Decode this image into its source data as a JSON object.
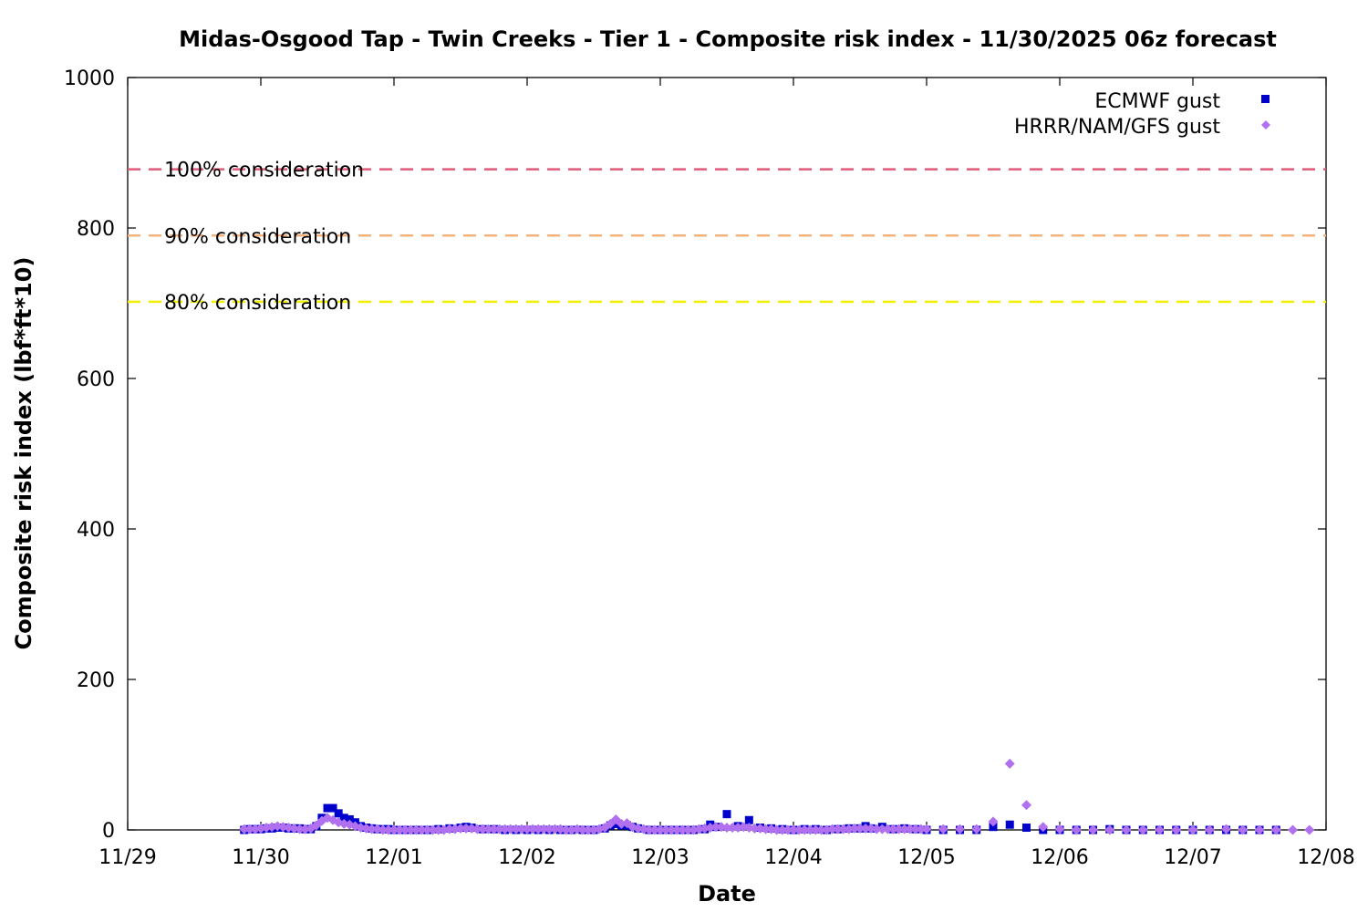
{
  "chart_data": {
    "type": "scatter",
    "title": "Midas-Osgood Tap - Twin Creeks - Tier 1 - Composite risk index - 11/30/2025 06z forecast",
    "xlabel": "Date",
    "ylabel": "Composite risk index (lbf*ft*10)",
    "x_ticks": [
      "11/29",
      "11/30",
      "12/01",
      "12/02",
      "12/03",
      "12/04",
      "12/05",
      "12/06",
      "12/07",
      "12/08"
    ],
    "xlim": [
      "2025-11-29T00:00",
      "2025-12-08T00:00"
    ],
    "ylim": [
      0,
      1000
    ],
    "y_ticks": [
      "0",
      "200",
      "400",
      "600",
      "800",
      "1000"
    ],
    "y_tick_values": [
      0,
      200,
      400,
      600,
      800,
      1000
    ],
    "grid": false,
    "legend_position": "top-right",
    "reference_lines": [
      {
        "label": "100% consideration",
        "value": 878,
        "color": "#e05a7a"
      },
      {
        "label": "90% consideration",
        "value": 790,
        "color": "#f5b27a"
      },
      {
        "label": "80% consideration",
        "value": 702,
        "color": "#f0f000"
      }
    ],
    "series": [
      {
        "name": "ECMWF gust",
        "marker": "square",
        "color": "#0000cc",
        "points": [
          [
            "2025-11-29T21:00",
            0
          ],
          [
            "2025-11-29T22:00",
            1
          ],
          [
            "2025-11-29T23:00",
            1
          ],
          [
            "2025-11-30T00:00",
            1
          ],
          [
            "2025-11-30T01:00",
            2
          ],
          [
            "2025-11-30T02:00",
            2
          ],
          [
            "2025-11-30T03:00",
            3
          ],
          [
            "2025-11-30T04:00",
            3
          ],
          [
            "2025-11-30T05:00",
            2
          ],
          [
            "2025-11-30T06:00",
            2
          ],
          [
            "2025-11-30T07:00",
            2
          ],
          [
            "2025-11-30T08:00",
            1
          ],
          [
            "2025-11-30T09:00",
            1
          ],
          [
            "2025-11-30T10:00",
            5
          ],
          [
            "2025-11-30T11:00",
            16
          ],
          [
            "2025-11-30T12:00",
            29
          ],
          [
            "2025-11-30T13:00",
            29
          ],
          [
            "2025-11-30T14:00",
            22
          ],
          [
            "2025-11-30T15:00",
            16
          ],
          [
            "2025-11-30T16:00",
            14
          ],
          [
            "2025-11-30T17:00",
            10
          ],
          [
            "2025-11-30T18:00",
            5
          ],
          [
            "2025-11-30T19:00",
            3
          ],
          [
            "2025-11-30T20:00",
            2
          ],
          [
            "2025-11-30T21:00",
            1
          ],
          [
            "2025-11-30T22:00",
            1
          ],
          [
            "2025-11-30T23:00",
            1
          ],
          [
            "2025-12-01T00:00",
            0
          ],
          [
            "2025-12-01T02:00",
            0
          ],
          [
            "2025-12-01T04:00",
            0
          ],
          [
            "2025-12-01T06:00",
            0
          ],
          [
            "2025-12-01T08:00",
            1
          ],
          [
            "2025-12-01T10:00",
            2
          ],
          [
            "2025-12-01T12:00",
            3
          ],
          [
            "2025-12-01T13:00",
            4
          ],
          [
            "2025-12-01T14:00",
            3
          ],
          [
            "2025-12-01T16:00",
            1
          ],
          [
            "2025-12-01T18:00",
            1
          ],
          [
            "2025-12-01T20:00",
            0
          ],
          [
            "2025-12-01T22:00",
            0
          ],
          [
            "2025-12-02T00:00",
            0
          ],
          [
            "2025-12-02T02:00",
            0
          ],
          [
            "2025-12-02T04:00",
            0
          ],
          [
            "2025-12-02T06:00",
            0
          ],
          [
            "2025-12-02T08:00",
            0
          ],
          [
            "2025-12-02T10:00",
            0
          ],
          [
            "2025-12-02T12:00",
            0
          ],
          [
            "2025-12-02T14:00",
            2
          ],
          [
            "2025-12-02T15:00",
            6
          ],
          [
            "2025-12-02T16:00",
            8
          ],
          [
            "2025-12-02T17:00",
            6
          ],
          [
            "2025-12-02T18:00",
            6
          ],
          [
            "2025-12-02T19:00",
            4
          ],
          [
            "2025-12-02T20:00",
            2
          ],
          [
            "2025-12-02T22:00",
            0
          ],
          [
            "2025-12-03T00:00",
            0
          ],
          [
            "2025-12-03T02:00",
            0
          ],
          [
            "2025-12-03T04:00",
            0
          ],
          [
            "2025-12-03T06:00",
            0
          ],
          [
            "2025-12-03T08:00",
            1
          ],
          [
            "2025-12-03T09:00",
            7
          ],
          [
            "2025-12-03T10:00",
            4
          ],
          [
            "2025-12-03T12:00",
            21
          ],
          [
            "2025-12-03T14:00",
            5
          ],
          [
            "2025-12-03T16:00",
            13
          ],
          [
            "2025-12-03T18:00",
            3
          ],
          [
            "2025-12-03T20:00",
            2
          ],
          [
            "2025-12-03T22:00",
            1
          ],
          [
            "2025-12-04T00:00",
            0
          ],
          [
            "2025-12-04T02:00",
            1
          ],
          [
            "2025-12-04T04:00",
            1
          ],
          [
            "2025-12-04T06:00",
            0
          ],
          [
            "2025-12-04T08:00",
            1
          ],
          [
            "2025-12-04T10:00",
            2
          ],
          [
            "2025-12-04T12:00",
            2
          ],
          [
            "2025-12-04T13:00",
            5
          ],
          [
            "2025-12-04T14:00",
            2
          ],
          [
            "2025-12-04T16:00",
            4
          ],
          [
            "2025-12-04T18:00",
            1
          ],
          [
            "2025-12-04T20:00",
            2
          ],
          [
            "2025-12-04T22:00",
            1
          ],
          [
            "2025-12-05T00:00",
            0
          ],
          [
            "2025-12-05T03:00",
            0
          ],
          [
            "2025-12-05T06:00",
            0
          ],
          [
            "2025-12-05T09:00",
            0
          ],
          [
            "2025-12-05T12:00",
            4
          ],
          [
            "2025-12-05T15:00",
            7
          ],
          [
            "2025-12-05T18:00",
            3
          ],
          [
            "2025-12-05T21:00",
            0
          ],
          [
            "2025-12-06T00:00",
            0
          ],
          [
            "2025-12-06T03:00",
            0
          ],
          [
            "2025-12-06T06:00",
            0
          ],
          [
            "2025-12-06T09:00",
            1
          ],
          [
            "2025-12-06T12:00",
            0
          ],
          [
            "2025-12-06T15:00",
            0
          ],
          [
            "2025-12-06T18:00",
            0
          ],
          [
            "2025-12-06T21:00",
            0
          ],
          [
            "2025-12-07T00:00",
            0
          ],
          [
            "2025-12-07T03:00",
            0
          ],
          [
            "2025-12-07T06:00",
            0
          ],
          [
            "2025-12-07T09:00",
            0
          ],
          [
            "2025-12-07T12:00",
            0
          ],
          [
            "2025-12-07T15:00",
            0
          ]
        ]
      },
      {
        "name": "HRRR/NAM/GFS gust",
        "marker": "diamond",
        "color": "#b070f0",
        "points": [
          [
            "2025-11-29T21:00",
            1
          ],
          [
            "2025-11-29T22:00",
            1
          ],
          [
            "2025-11-29T23:00",
            1
          ],
          [
            "2025-11-30T00:00",
            2
          ],
          [
            "2025-11-30T01:00",
            3
          ],
          [
            "2025-11-30T02:00",
            4
          ],
          [
            "2025-11-30T03:00",
            5
          ],
          [
            "2025-11-30T04:00",
            4
          ],
          [
            "2025-11-30T05:00",
            3
          ],
          [
            "2025-11-30T06:00",
            2
          ],
          [
            "2025-11-30T07:00",
            1
          ],
          [
            "2025-11-30T08:00",
            1
          ],
          [
            "2025-11-30T09:00",
            2
          ],
          [
            "2025-11-30T10:00",
            6
          ],
          [
            "2025-11-30T11:00",
            12
          ],
          [
            "2025-11-30T12:00",
            16
          ],
          [
            "2025-11-30T13:00",
            13
          ],
          [
            "2025-11-30T14:00",
            10
          ],
          [
            "2025-11-30T15:00",
            8
          ],
          [
            "2025-11-30T16:00",
            7
          ],
          [
            "2025-11-30T17:00",
            5
          ],
          [
            "2025-11-30T18:00",
            3
          ],
          [
            "2025-11-30T19:00",
            2
          ],
          [
            "2025-11-30T20:00",
            1
          ],
          [
            "2025-11-30T21:00",
            1
          ],
          [
            "2025-11-30T22:00",
            0
          ],
          [
            "2025-11-30T23:00",
            0
          ],
          [
            "2025-12-01T00:00",
            0
          ],
          [
            "2025-12-01T01:00",
            0
          ],
          [
            "2025-12-01T02:00",
            0
          ],
          [
            "2025-12-01T03:00",
            0
          ],
          [
            "2025-12-01T04:00",
            0
          ],
          [
            "2025-12-01T05:00",
            0
          ],
          [
            "2025-12-01T06:00",
            0
          ],
          [
            "2025-12-01T07:00",
            0
          ],
          [
            "2025-12-01T08:00",
            0
          ],
          [
            "2025-12-01T09:00",
            0
          ],
          [
            "2025-12-01T10:00",
            1
          ],
          [
            "2025-12-01T11:00",
            1
          ],
          [
            "2025-12-01T12:00",
            2
          ],
          [
            "2025-12-01T13:00",
            2
          ],
          [
            "2025-12-01T14:00",
            2
          ],
          [
            "2025-12-01T15:00",
            1
          ],
          [
            "2025-12-01T16:00",
            1
          ],
          [
            "2025-12-01T17:00",
            1
          ],
          [
            "2025-12-01T18:00",
            1
          ],
          [
            "2025-12-01T19:00",
            1
          ],
          [
            "2025-12-01T20:00",
            1
          ],
          [
            "2025-12-01T21:00",
            1
          ],
          [
            "2025-12-01T22:00",
            1
          ],
          [
            "2025-12-01T23:00",
            1
          ],
          [
            "2025-12-02T00:00",
            1
          ],
          [
            "2025-12-02T01:00",
            1
          ],
          [
            "2025-12-02T02:00",
            1
          ],
          [
            "2025-12-02T03:00",
            1
          ],
          [
            "2025-12-02T04:00",
            1
          ],
          [
            "2025-12-02T05:00",
            1
          ],
          [
            "2025-12-02T06:00",
            1
          ],
          [
            "2025-12-02T07:00",
            0
          ],
          [
            "2025-12-02T08:00",
            0
          ],
          [
            "2025-12-02T09:00",
            1
          ],
          [
            "2025-12-02T10:00",
            0
          ],
          [
            "2025-12-02T11:00",
            0
          ],
          [
            "2025-12-02T12:00",
            0
          ],
          [
            "2025-12-02T13:00",
            1
          ],
          [
            "2025-12-02T14:00",
            3
          ],
          [
            "2025-12-02T15:00",
            8
          ],
          [
            "2025-12-02T16:00",
            14
          ],
          [
            "2025-12-02T17:00",
            8
          ],
          [
            "2025-12-02T18:00",
            9
          ],
          [
            "2025-12-02T19:00",
            4
          ],
          [
            "2025-12-02T20:00",
            2
          ],
          [
            "2025-12-02T21:00",
            1
          ],
          [
            "2025-12-02T22:00",
            0
          ],
          [
            "2025-12-02T23:00",
            0
          ],
          [
            "2025-12-03T00:00",
            0
          ],
          [
            "2025-12-03T01:00",
            0
          ],
          [
            "2025-12-03T02:00",
            0
          ],
          [
            "2025-12-03T03:00",
            0
          ],
          [
            "2025-12-03T04:00",
            0
          ],
          [
            "2025-12-03T05:00",
            0
          ],
          [
            "2025-12-03T06:00",
            0
          ],
          [
            "2025-12-03T07:00",
            1
          ],
          [
            "2025-12-03T08:00",
            2
          ],
          [
            "2025-12-03T09:00",
            3
          ],
          [
            "2025-12-03T10:00",
            4
          ],
          [
            "2025-12-03T11:00",
            4
          ],
          [
            "2025-12-03T12:00",
            3
          ],
          [
            "2025-12-03T13:00",
            3
          ],
          [
            "2025-12-03T14:00",
            3
          ],
          [
            "2025-12-03T15:00",
            4
          ],
          [
            "2025-12-03T16:00",
            3
          ],
          [
            "2025-12-03T17:00",
            2
          ],
          [
            "2025-12-03T18:00",
            2
          ],
          [
            "2025-12-03T19:00",
            1
          ],
          [
            "2025-12-03T20:00",
            1
          ],
          [
            "2025-12-03T21:00",
            0
          ],
          [
            "2025-12-03T22:00",
            0
          ],
          [
            "2025-12-03T23:00",
            0
          ],
          [
            "2025-12-04T00:00",
            0
          ],
          [
            "2025-12-04T01:00",
            0
          ],
          [
            "2025-12-04T02:00",
            0
          ],
          [
            "2025-12-04T03:00",
            0
          ],
          [
            "2025-12-04T04:00",
            0
          ],
          [
            "2025-12-04T05:00",
            0
          ],
          [
            "2025-12-04T06:00",
            0
          ],
          [
            "2025-12-04T07:00",
            1
          ],
          [
            "2025-12-04T08:00",
            1
          ],
          [
            "2025-12-04T09:00",
            1
          ],
          [
            "2025-12-04T10:00",
            1
          ],
          [
            "2025-12-04T11:00",
            2
          ],
          [
            "2025-12-04T12:00",
            2
          ],
          [
            "2025-12-04T13:00",
            2
          ],
          [
            "2025-12-04T14:00",
            2
          ],
          [
            "2025-12-04T15:00",
            1
          ],
          [
            "2025-12-04T16:00",
            1
          ],
          [
            "2025-12-04T17:00",
            1
          ],
          [
            "2025-12-04T18:00",
            1
          ],
          [
            "2025-12-04T19:00",
            1
          ],
          [
            "2025-12-04T20:00",
            1
          ],
          [
            "2025-12-04T21:00",
            1
          ],
          [
            "2025-12-04T22:00",
            1
          ],
          [
            "2025-12-04T23:00",
            1
          ],
          [
            "2025-12-05T00:00",
            1
          ],
          [
            "2025-12-05T03:00",
            1
          ],
          [
            "2025-12-05T06:00",
            1
          ],
          [
            "2025-12-05T09:00",
            1
          ],
          [
            "2025-12-05T12:00",
            11
          ],
          [
            "2025-12-05T15:00",
            88
          ],
          [
            "2025-12-05T18:00",
            33
          ],
          [
            "2025-12-05T21:00",
            4
          ],
          [
            "2025-12-06T00:00",
            1
          ],
          [
            "2025-12-06T03:00",
            0
          ],
          [
            "2025-12-06T06:00",
            0
          ],
          [
            "2025-12-06T09:00",
            0
          ],
          [
            "2025-12-06T12:00",
            0
          ],
          [
            "2025-12-06T15:00",
            0
          ],
          [
            "2025-12-06T18:00",
            0
          ],
          [
            "2025-12-06T21:00",
            0
          ],
          [
            "2025-12-07T00:00",
            0
          ],
          [
            "2025-12-07T03:00",
            0
          ],
          [
            "2025-12-07T06:00",
            1
          ],
          [
            "2025-12-07T09:00",
            0
          ],
          [
            "2025-12-07T12:00",
            0
          ],
          [
            "2025-12-07T15:00",
            0
          ],
          [
            "2025-12-07T18:00",
            0
          ],
          [
            "2025-12-07T21:00",
            0
          ]
        ]
      }
    ]
  }
}
